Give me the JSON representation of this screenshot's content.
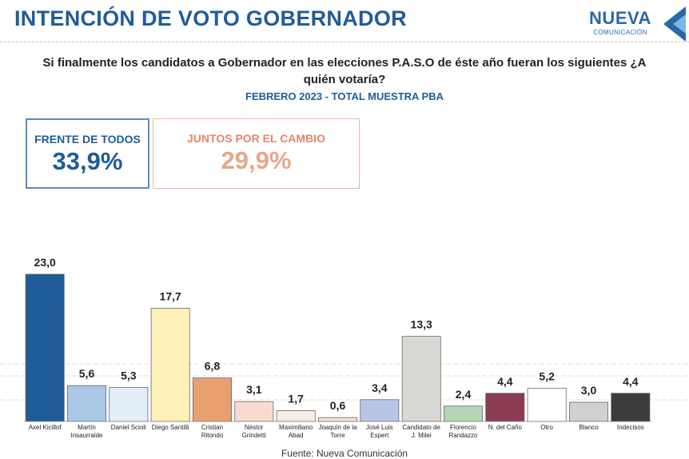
{
  "header": {
    "title": "INTENCIÓN DE VOTO GOBERNADOR",
    "logo": "NUEVA",
    "logo_sub": "COMUNICACIÓN"
  },
  "blocs": [
    {
      "name": "FRENTE DE TODOS",
      "share": "33,9%"
    },
    {
      "name": "JUNTOS POR EL CAMBIO",
      "share": "29,9%"
    }
  ],
  "chart_data": {
    "type": "bar",
    "title": "Si finalmente los candidatos a Gobernador en las elecciones P.A.S.O de éste año fueran los siguientes ¿A quién votaría?",
    "subtitle": "FEBRERO 2023 - TOTAL MUESTRA PBA",
    "categories": [
      "Axel Kicillof",
      "Martín Insaurralde",
      "Daniel Scioli",
      "Diego Santilli",
      "Cristian Ritondo",
      "Néstor Grindetti",
      "Maximiliano Abad",
      "Joaquín de la Torre",
      "José Luis Espert",
      "Candidato de J. Milei",
      "Florencio Randazzo",
      "N. del Caño",
      "Otro",
      "Blanco",
      "Indecisos"
    ],
    "values": [
      23.0,
      5.6,
      5.3,
      17.7,
      6.8,
      3.1,
      1.7,
      0.6,
      3.4,
      13.3,
      2.4,
      4.4,
      5.2,
      3.0,
      4.4
    ],
    "value_labels": [
      "23,0",
      "5,6",
      "5,3",
      "17,7",
      "6,8",
      "3,1",
      "1,7",
      "0,6",
      "3,4",
      "13,3",
      "2,4",
      "4,4",
      "5,2",
      "3,0",
      "4,4"
    ],
    "colors": [
      "#1f5c99",
      "#a9c8e8",
      "#e4eef8",
      "#fdf0b8",
      "#e8a070",
      "#f6dcd0",
      "#f8ece6",
      "#f6e4dc",
      "#b9c5e6",
      "#d8d8d4",
      "#b7d6b5",
      "#8b3b52",
      "#ffffff",
      "#d0d0d0",
      "#3c3c3c"
    ],
    "ylim": [
      0,
      25
    ],
    "source": "Fuente: Nueva Comunicación"
  }
}
